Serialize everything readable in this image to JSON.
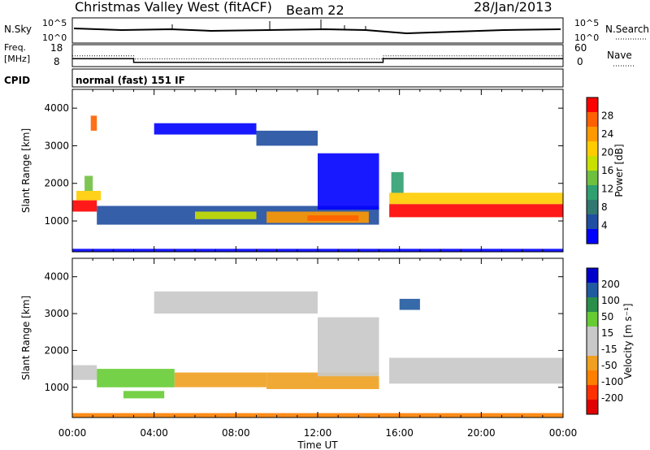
{
  "header": {
    "station": "Christmas Valley West (fitACF)",
    "beam": "Beam 22",
    "date": "28/Jan/2013"
  },
  "nsky": {
    "left_label": "N.Sky",
    "right_label": "N.Search",
    "ticks_left": [
      "10^5",
      "10^0"
    ],
    "ticks_right": [
      "10^5",
      "10^0"
    ]
  },
  "freq": {
    "left_label_line1": "Freq.",
    "left_label_line2": "[MHz]",
    "right_label": "Nave",
    "ticks_left": [
      "18",
      "8"
    ],
    "ticks_right": [
      "60",
      "0"
    ],
    "series": [
      {
        "x": [
          0,
          3.0,
          3.0,
          15.2,
          15.2,
          24
        ],
        "y": [
          12.4,
          12.4,
          10.4,
          10.4,
          12.4,
          12.4
        ]
      }
    ],
    "nave_series": [
      {
        "x": [
          0,
          3.0,
          3.0,
          15.2,
          15.2,
          24
        ],
        "y": [
          36,
          36,
          26,
          26,
          36,
          36
        ]
      }
    ]
  },
  "cpid": {
    "label": "CPID",
    "text": "normal (fast) 151 IF"
  },
  "chart_data": [
    {
      "type": "heatmap",
      "panel": "power",
      "xlabel": "Time UT",
      "ylabel": "Slant Range [km]",
      "x_ticks": [
        "00:00",
        "04:00",
        "08:00",
        "12:00",
        "16:00",
        "20:00",
        "00:00"
      ],
      "x_range_hours": [
        0,
        24
      ],
      "y_ticks": [
        1000,
        2000,
        3000,
        4000
      ],
      "ylim": [
        180,
        4500
      ],
      "colorbar": {
        "label": "Power [dB]",
        "ticks": [
          "28",
          "24",
          "20",
          "16",
          "12",
          "8",
          "4"
        ],
        "colors": [
          "#ff0000",
          "#ff6000",
          "#ff9900",
          "#ffcc00",
          "#c8e000",
          "#70c040",
          "#30a070",
          "#307870",
          "#204ea0",
          "#0000ff"
        ]
      },
      "regions": [
        {
          "t0": 0.0,
          "t1": 1.2,
          "r0": 1250,
          "r1": 1550,
          "level": 0
        },
        {
          "t0": 0.2,
          "t1": 1.4,
          "r0": 1550,
          "r1": 1800,
          "level": 3
        },
        {
          "t0": 0.6,
          "t1": 1.0,
          "r0": 1800,
          "r1": 2200,
          "level": 5
        },
        {
          "t0": 0.9,
          "t1": 1.2,
          "r0": 3400,
          "r1": 3800,
          "level": 1
        },
        {
          "t0": 1.2,
          "t1": 15.0,
          "r0": 900,
          "r1": 1400,
          "level": 8
        },
        {
          "t0": 6.0,
          "t1": 9.0,
          "r0": 1050,
          "r1": 1250,
          "level": 4
        },
        {
          "t0": 9.5,
          "t1": 14.5,
          "r0": 950,
          "r1": 1250,
          "level": 2
        },
        {
          "t0": 11.5,
          "t1": 14.0,
          "r0": 1000,
          "r1": 1150,
          "level": 1
        },
        {
          "t0": 15.5,
          "t1": 24.0,
          "r0": 1100,
          "r1": 1450,
          "level": 0
        },
        {
          "t0": 15.5,
          "t1": 24.0,
          "r0": 1450,
          "r1": 1750,
          "level": 3
        },
        {
          "t0": 15.6,
          "t1": 16.2,
          "r0": 1750,
          "r1": 2300,
          "level": 6
        },
        {
          "t0": 4.0,
          "t1": 9.0,
          "r0": 3300,
          "r1": 3600,
          "level": 9
        },
        {
          "t0": 9.0,
          "t1": 12.0,
          "r0": 3000,
          "r1": 3400,
          "level": 8
        },
        {
          "t0": 12.0,
          "t1": 15.0,
          "r0": 1300,
          "r1": 2800,
          "level": 9
        },
        {
          "t0": 0.0,
          "t1": 24.0,
          "r0": 180,
          "r1": 260,
          "level": 9
        }
      ]
    },
    {
      "type": "heatmap",
      "panel": "velocity",
      "xlabel": "Time UT",
      "ylabel": "Slant Range [km]",
      "x_ticks": [
        "00:00",
        "04:00",
        "08:00",
        "12:00",
        "16:00",
        "20:00",
        "00:00"
      ],
      "x_range_hours": [
        0,
        24
      ],
      "y_ticks": [
        1000,
        2000,
        3000,
        4000
      ],
      "ylim": [
        180,
        4500
      ],
      "colorbar": {
        "label": "Velocity [m s⁻¹]",
        "ticks": [
          "200",
          "100",
          "50",
          "15",
          "-15",
          "-50",
          "-100",
          "-200"
        ],
        "colors": [
          "#0000cc",
          "#205aa0",
          "#2a8f4a",
          "#66cc33",
          "#c8c8c8",
          "#c8c8c8",
          "#f0a020",
          "#ff7f00",
          "#ff3000",
          "#e00000"
        ]
      },
      "regions": [
        {
          "t0": 0.0,
          "t1": 1.2,
          "r0": 1200,
          "r1": 1600,
          "level": 4
        },
        {
          "t0": 1.2,
          "t1": 5.0,
          "r0": 1000,
          "r1": 1500,
          "level": 3
        },
        {
          "t0": 5.0,
          "t1": 9.5,
          "r0": 1000,
          "r1": 1400,
          "level": 6
        },
        {
          "t0": 9.5,
          "t1": 15.0,
          "r0": 950,
          "r1": 1400,
          "level": 6
        },
        {
          "t0": 2.5,
          "t1": 4.5,
          "r0": 700,
          "r1": 900,
          "level": 3
        },
        {
          "t0": 15.5,
          "t1": 24.0,
          "r0": 1100,
          "r1": 1800,
          "level": 4
        },
        {
          "t0": 4.0,
          "t1": 12.0,
          "r0": 3000,
          "r1": 3600,
          "level": 4
        },
        {
          "t0": 12.0,
          "t1": 15.0,
          "r0": 1300,
          "r1": 2900,
          "level": 4
        },
        {
          "t0": 0.0,
          "t1": 24.0,
          "r0": 180,
          "r1": 300,
          "level": 7
        },
        {
          "t0": 16.0,
          "t1": 17.0,
          "r0": 3100,
          "r1": 3400,
          "level": 1
        }
      ]
    }
  ]
}
